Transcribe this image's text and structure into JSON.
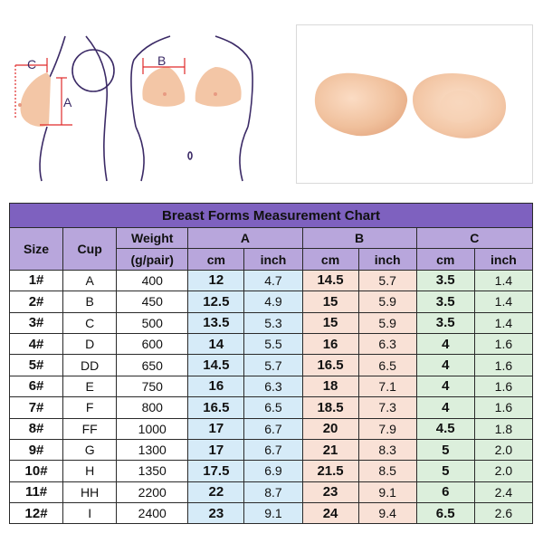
{
  "illustration": {
    "labels": {
      "c": "C",
      "a": "A",
      "b": "B"
    }
  },
  "colors": {
    "header_purple": "#7e61bf",
    "subheader_lavender": "#b8a6dc",
    "a_fill": "#d6ebf8",
    "b_fill": "#f9e1d6",
    "c_fill": "#dcefdc",
    "body_line": "#3b2a66",
    "breast_form": "#f3c6a6"
  },
  "table": {
    "title": "Breast Forms Measurement Chart",
    "headers": {
      "size": "Size",
      "cup": "Cup",
      "weight": "Weight",
      "weight_unit": "(g/pair)",
      "a": "A",
      "b": "B",
      "c": "C",
      "cm": "cm",
      "inch": "inch"
    },
    "rows": [
      {
        "size": "1#",
        "cup": "A",
        "weight": "400",
        "a_cm": "12",
        "a_in": "4.7",
        "b_cm": "14.5",
        "b_in": "5.7",
        "c_cm": "3.5",
        "c_in": "1.4"
      },
      {
        "size": "2#",
        "cup": "B",
        "weight": "450",
        "a_cm": "12.5",
        "a_in": "4.9",
        "b_cm": "15",
        "b_in": "5.9",
        "c_cm": "3.5",
        "c_in": "1.4"
      },
      {
        "size": "3#",
        "cup": "C",
        "weight": "500",
        "a_cm": "13.5",
        "a_in": "5.3",
        "b_cm": "15",
        "b_in": "5.9",
        "c_cm": "3.5",
        "c_in": "1.4"
      },
      {
        "size": "4#",
        "cup": "D",
        "weight": "600",
        "a_cm": "14",
        "a_in": "5.5",
        "b_cm": "16",
        "b_in": "6.3",
        "c_cm": "4",
        "c_in": "1.6"
      },
      {
        "size": "5#",
        "cup": "DD",
        "weight": "650",
        "a_cm": "14.5",
        "a_in": "5.7",
        "b_cm": "16.5",
        "b_in": "6.5",
        "c_cm": "4",
        "c_in": "1.6"
      },
      {
        "size": "6#",
        "cup": "E",
        "weight": "750",
        "a_cm": "16",
        "a_in": "6.3",
        "b_cm": "18",
        "b_in": "7.1",
        "c_cm": "4",
        "c_in": "1.6"
      },
      {
        "size": "7#",
        "cup": "F",
        "weight": "800",
        "a_cm": "16.5",
        "a_in": "6.5",
        "b_cm": "18.5",
        "b_in": "7.3",
        "c_cm": "4",
        "c_in": "1.6"
      },
      {
        "size": "8#",
        "cup": "FF",
        "weight": "1000",
        "a_cm": "17",
        "a_in": "6.7",
        "b_cm": "20",
        "b_in": "7.9",
        "c_cm": "4.5",
        "c_in": "1.8"
      },
      {
        "size": "9#",
        "cup": "G",
        "weight": "1300",
        "a_cm": "17",
        "a_in": "6.7",
        "b_cm": "21",
        "b_in": "8.3",
        "c_cm": "5",
        "c_in": "2.0"
      },
      {
        "size": "10#",
        "cup": "H",
        "weight": "1350",
        "a_cm": "17.5",
        "a_in": "6.9",
        "b_cm": "21.5",
        "b_in": "8.5",
        "c_cm": "5",
        "c_in": "2.0"
      },
      {
        "size": "11#",
        "cup": "HH",
        "weight": "2200",
        "a_cm": "22",
        "a_in": "8.7",
        "b_cm": "23",
        "b_in": "9.1",
        "c_cm": "6",
        "c_in": "2.4"
      },
      {
        "size": "12#",
        "cup": "I",
        "weight": "2400",
        "a_cm": "23",
        "a_in": "9.1",
        "b_cm": "24",
        "b_in": "9.4",
        "c_cm": "6.5",
        "c_in": "2.6"
      }
    ]
  }
}
